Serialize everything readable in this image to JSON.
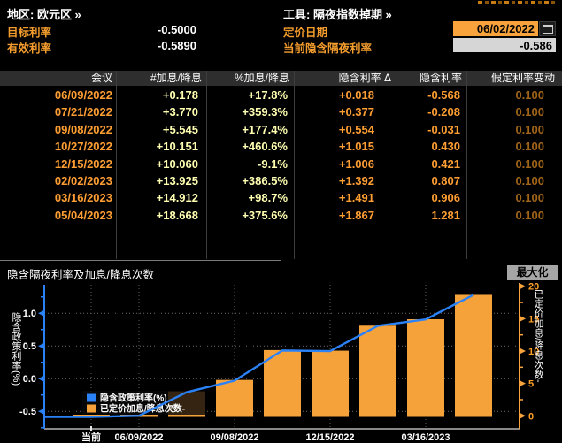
{
  "header": {
    "region_label": "地区: 欧元区 »",
    "target_rate_label": "目标利率",
    "target_rate_value": "-0.5000",
    "effective_rate_label": "有效利率",
    "effective_rate_value": "-0.5890",
    "tool_label": "工具: 隔夜指数掉期 »",
    "pricing_date_label": "定价日期",
    "pricing_date_value": "06/02/2022",
    "current_implied_label": "当前隐含隔夜利率",
    "current_implied_value": "-0.586"
  },
  "table": {
    "columns": [
      "会议",
      "#加息/降息",
      "%加息/降息",
      "隐含利率 Δ",
      "隐含利率",
      "假定利率变动"
    ],
    "rows": [
      [
        "06/09/2022",
        "+0.178",
        "+17.8%",
        "+0.018",
        "-0.568",
        "0.100"
      ],
      [
        "07/21/2022",
        "+3.770",
        "+359.3%",
        "+0.377",
        "-0.208",
        "0.100"
      ],
      [
        "09/08/2022",
        "+5.545",
        "+177.4%",
        "+0.554",
        "-0.031",
        "0.100"
      ],
      [
        "10/27/2022",
        "+10.151",
        "+460.6%",
        "+1.015",
        "0.430",
        "0.100"
      ],
      [
        "12/15/2022",
        "+10.060",
        "-9.1%",
        "+1.006",
        "0.421",
        "0.100"
      ],
      [
        "02/02/2023",
        "+13.925",
        "+386.5%",
        "+1.392",
        "0.807",
        "0.100"
      ],
      [
        "03/16/2023",
        "+14.912",
        "+98.7%",
        "+1.491",
        "0.906",
        "0.100"
      ],
      [
        "05/04/2023",
        "+18.668",
        "+375.6%",
        "+1.867",
        "1.281",
        "0.100"
      ]
    ]
  },
  "chart": {
    "title": "隐含隔夜利率及加息/降息次数",
    "maximize_button": "最大化",
    "legend": [
      "隐含政策利率(%)",
      "已定价加息/降息次数-"
    ]
  },
  "chart_data": {
    "type": "bar",
    "title": "隐含隔夜利率及加息/降息次数",
    "categories": [
      "当前",
      "06/09/2022",
      "07/21/2022",
      "09/08/2022",
      "10/27/2022",
      "12/15/2022",
      "02/02/2023",
      "03/16/2023",
      "05/04/2023"
    ],
    "series": [
      {
        "name": "隐含政策利率(%)",
        "type": "line",
        "axis": "left",
        "values": [
          -0.586,
          -0.568,
          -0.208,
          -0.031,
          0.43,
          0.421,
          0.807,
          0.906,
          1.281
        ]
      },
      {
        "name": "已定价加息/降息次数",
        "type": "bar",
        "axis": "right",
        "values": [
          0,
          0.178,
          3.77,
          5.545,
          10.151,
          10.06,
          13.925,
          14.912,
          18.668
        ]
      }
    ],
    "x_tick_labels": [
      "当前",
      "06/09/2022",
      "09/08/2022",
      "12/15/2022",
      "03/16/2023"
    ],
    "left_axis": {
      "label": "隐含政策利率(%)",
      "ticks": [
        "1.0",
        "0.5",
        "0.0",
        "-0.5"
      ],
      "ylim": [
        -0.75,
        1.45
      ]
    },
    "right_axis": {
      "label": "已定价加息/降息次数-",
      "ticks": [
        "20",
        "15",
        "10",
        "5",
        "0"
      ],
      "ylim": [
        0,
        20
      ]
    },
    "legend_position": "bottom-left",
    "grid": true,
    "colors": {
      "line": "#2b82f7",
      "bar": "#f6a23b",
      "left_axis": "#2b82f7",
      "right_axis": "#f8a33c"
    }
  }
}
